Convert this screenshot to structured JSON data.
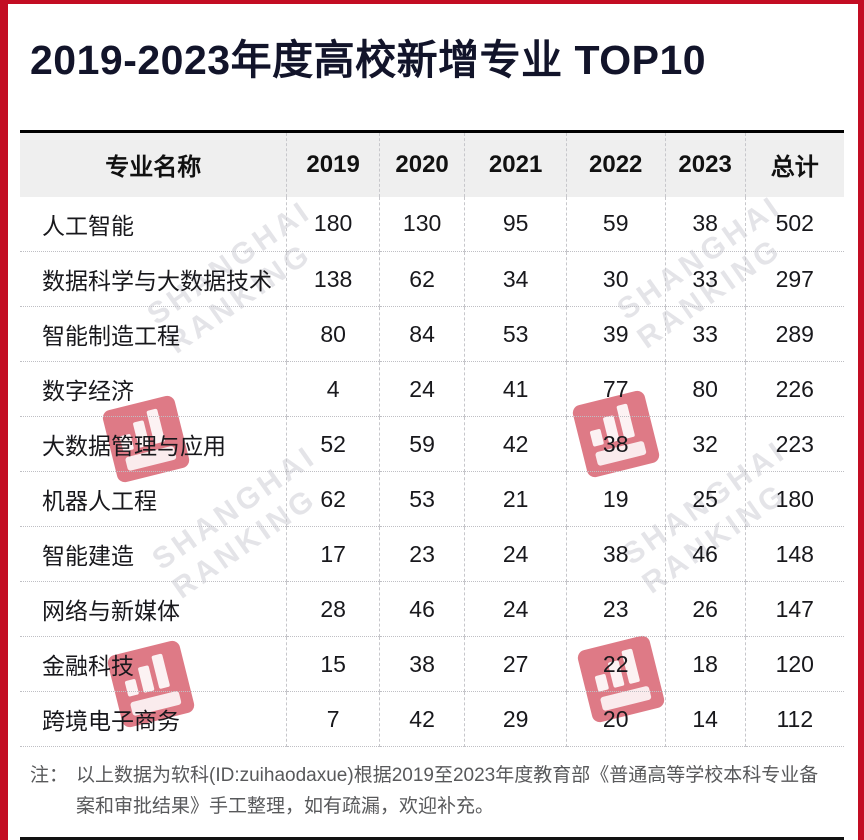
{
  "page": {
    "title": "2019-2023年度高校新增专业 TOP10",
    "frame_color": "#c30d23",
    "header_bg": "#efefef",
    "note": {
      "prefix": "注：",
      "text": "以上数据为软科(ID:zuihaodaxue)根据2019至2023年度教育部《普通高等学校本科专业备案和审批结果》手工整理，如有疏漏，欢迎补充。"
    },
    "watermark": {
      "line1": "SHANGHAI",
      "line2": "RANKING",
      "icon": "shanghairanking-logo-icon",
      "text_color": "#e4e4e8",
      "logo_color": "#c30d23"
    }
  },
  "chart_data": {
    "type": "table",
    "title": "2019-2023年度高校新增专业 TOP10",
    "columns": [
      "专业名称",
      "2019",
      "2020",
      "2021",
      "2022",
      "2023",
      "总计"
    ],
    "rows": [
      {
        "name": "人工智能",
        "values": [
          180,
          130,
          95,
          59,
          38,
          502
        ]
      },
      {
        "name": "数据科学与大数据技术",
        "values": [
          138,
          62,
          34,
          30,
          33,
          297
        ]
      },
      {
        "name": "智能制造工程",
        "values": [
          80,
          84,
          53,
          39,
          33,
          289
        ]
      },
      {
        "name": "数字经济",
        "values": [
          4,
          24,
          41,
          77,
          80,
          226
        ]
      },
      {
        "name": "大数据管理与应用",
        "values": [
          52,
          59,
          42,
          38,
          32,
          223
        ]
      },
      {
        "name": "机器人工程",
        "values": [
          62,
          53,
          21,
          19,
          25,
          180
        ]
      },
      {
        "name": "智能建造",
        "values": [
          17,
          23,
          24,
          38,
          46,
          148
        ]
      },
      {
        "name": "网络与新媒体",
        "values": [
          28,
          46,
          24,
          23,
          26,
          147
        ]
      },
      {
        "name": "金融科技",
        "values": [
          15,
          38,
          27,
          22,
          18,
          120
        ]
      },
      {
        "name": "跨境电子商务",
        "values": [
          7,
          42,
          29,
          20,
          14,
          112
        ]
      }
    ]
  }
}
